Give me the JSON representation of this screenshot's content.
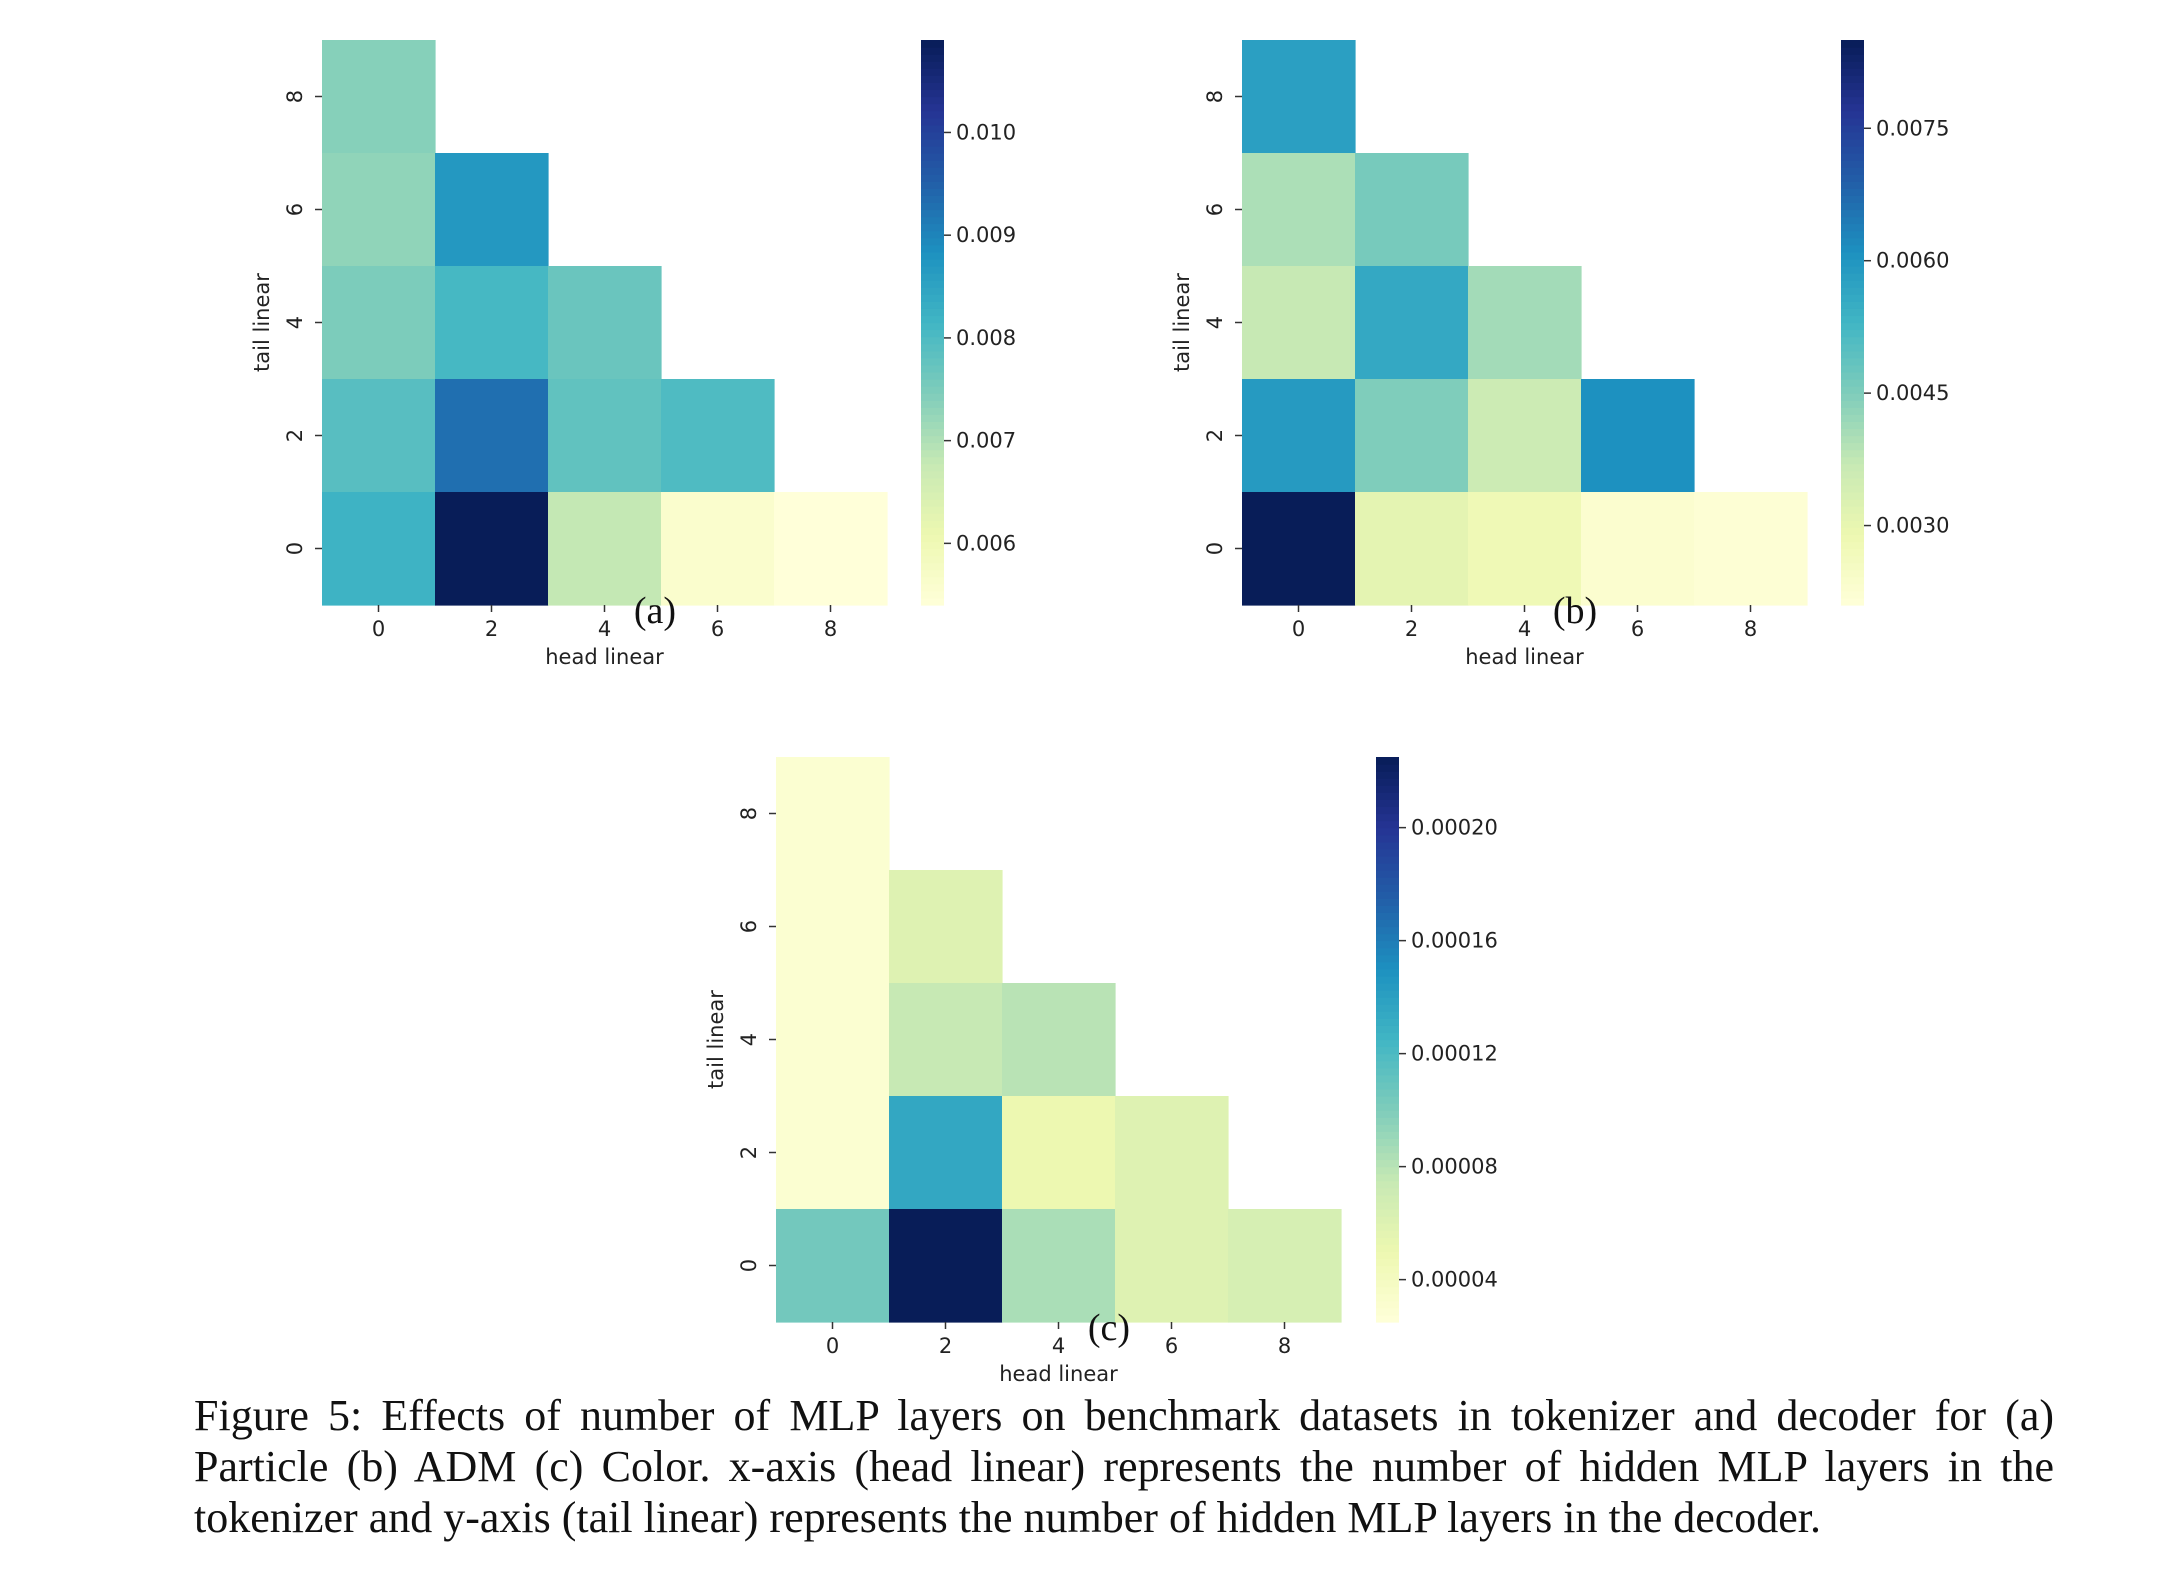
{
  "chart_data": [
    {
      "type": "heatmap",
      "panel_label": "(a)",
      "xlabel": "head linear",
      "ylabel": "tail linear",
      "x_ticks": [
        "0",
        "2",
        "4",
        "6",
        "8"
      ],
      "y_ticks": [
        "0",
        "2",
        "4",
        "6",
        "8"
      ],
      "colormap": "YlGnBu",
      "colorbar": {
        "min": 0.0054,
        "max": 0.0109,
        "ticks": [
          "0.006",
          "0.007",
          "0.008",
          "0.009",
          "0.010"
        ],
        "tick_values": [
          0.006,
          0.007,
          0.008,
          0.009,
          0.01
        ]
      },
      "cells": [
        {
          "head": 0,
          "tail": 8,
          "value": 0.0074
        },
        {
          "head": 0,
          "tail": 6,
          "value": 0.0073
        },
        {
          "head": 2,
          "tail": 6,
          "value": 0.0087
        },
        {
          "head": 0,
          "tail": 4,
          "value": 0.0075
        },
        {
          "head": 2,
          "tail": 4,
          "value": 0.0081
        },
        {
          "head": 4,
          "tail": 4,
          "value": 0.0077
        },
        {
          "head": 0,
          "tail": 2,
          "value": 0.0079
        },
        {
          "head": 2,
          "tail": 2,
          "value": 0.0093
        },
        {
          "head": 4,
          "tail": 2,
          "value": 0.0078
        },
        {
          "head": 6,
          "tail": 2,
          "value": 0.008
        },
        {
          "head": 0,
          "tail": 0,
          "value": 0.0082
        },
        {
          "head": 2,
          "tail": 0,
          "value": 0.0109
        },
        {
          "head": 4,
          "tail": 0,
          "value": 0.0068
        },
        {
          "head": 6,
          "tail": 0,
          "value": 0.0056
        },
        {
          "head": 8,
          "tail": 0,
          "value": 0.0054
        }
      ]
    },
    {
      "type": "heatmap",
      "panel_label": "(b)",
      "xlabel": "head linear",
      "ylabel": "tail linear",
      "x_ticks": [
        "0",
        "2",
        "4",
        "6",
        "8"
      ],
      "y_ticks": [
        "0",
        "2",
        "4",
        "6",
        "8"
      ],
      "colormap": "YlGnBu",
      "colorbar": {
        "min": 0.0021,
        "max": 0.0085,
        "ticks": [
          "0.0030",
          "0.0045",
          "0.0060",
          "0.0075"
        ],
        "tick_values": [
          0.003,
          0.0045,
          0.006,
          0.0075
        ]
      },
      "cells": [
        {
          "head": 0,
          "tail": 8,
          "value": 0.0058
        },
        {
          "head": 0,
          "tail": 6,
          "value": 0.004
        },
        {
          "head": 2,
          "tail": 6,
          "value": 0.0046
        },
        {
          "head": 0,
          "tail": 4,
          "value": 0.0037
        },
        {
          "head": 2,
          "tail": 4,
          "value": 0.0056
        },
        {
          "head": 4,
          "tail": 4,
          "value": 0.0041
        },
        {
          "head": 0,
          "tail": 2,
          "value": 0.0059
        },
        {
          "head": 2,
          "tail": 2,
          "value": 0.0045
        },
        {
          "head": 4,
          "tail": 2,
          "value": 0.0036
        },
        {
          "head": 6,
          "tail": 2,
          "value": 0.0061
        },
        {
          "head": 0,
          "tail": 0,
          "value": 0.0085
        },
        {
          "head": 2,
          "tail": 0,
          "value": 0.0031
        },
        {
          "head": 4,
          "tail": 0,
          "value": 0.0028
        },
        {
          "head": 6,
          "tail": 0,
          "value": 0.0023
        },
        {
          "head": 8,
          "tail": 0,
          "value": 0.0022
        }
      ]
    },
    {
      "type": "heatmap",
      "panel_label": "(c)",
      "xlabel": "head linear",
      "ylabel": "tail linear",
      "x_ticks": [
        "0",
        "2",
        "4",
        "6",
        "8"
      ],
      "y_ticks": [
        "0",
        "2",
        "4",
        "6",
        "8"
      ],
      "colormap": "YlGnBu",
      "colorbar": {
        "min": 2.5e-05,
        "max": 0.000225,
        "ticks": [
          "0.00004",
          "0.00008",
          "0.00012",
          "0.00016",
          "0.00020"
        ],
        "tick_values": [
          4e-05,
          8e-05,
          0.00012,
          0.00016,
          0.0002
        ]
      },
      "cells": [
        {
          "head": 0,
          "tail": 8,
          "value": 3e-05
        },
        {
          "head": 0,
          "tail": 6,
          "value": 3e-05
        },
        {
          "head": 2,
          "tail": 6,
          "value": 6e-05
        },
        {
          "head": 0,
          "tail": 4,
          "value": 3e-05
        },
        {
          "head": 2,
          "tail": 4,
          "value": 7.5e-05
        },
        {
          "head": 4,
          "tail": 4,
          "value": 8e-05
        },
        {
          "head": 0,
          "tail": 2,
          "value": 3e-05
        },
        {
          "head": 2,
          "tail": 2,
          "value": 0.000135
        },
        {
          "head": 4,
          "tail": 2,
          "value": 5e-05
        },
        {
          "head": 6,
          "tail": 2,
          "value": 6e-05
        },
        {
          "head": 0,
          "tail": 0,
          "value": 0.000105
        },
        {
          "head": 2,
          "tail": 0,
          "value": 0.000225
        },
        {
          "head": 4,
          "tail": 0,
          "value": 8.5e-05
        },
        {
          "head": 6,
          "tail": 0,
          "value": 6e-05
        },
        {
          "head": 8,
          "tail": 0,
          "value": 6.5e-05
        }
      ]
    }
  ],
  "caption": "Figure 5: Effects of number of MLP layers on benchmark datasets in tokenizer and decoder for (a) Particle (b) ADM (c) Color. x-axis (head linear) represents the number of hidden MLP layers in the tokenizer and y-axis (tail linear) represents the number of hidden MLP layers in the decoder."
}
